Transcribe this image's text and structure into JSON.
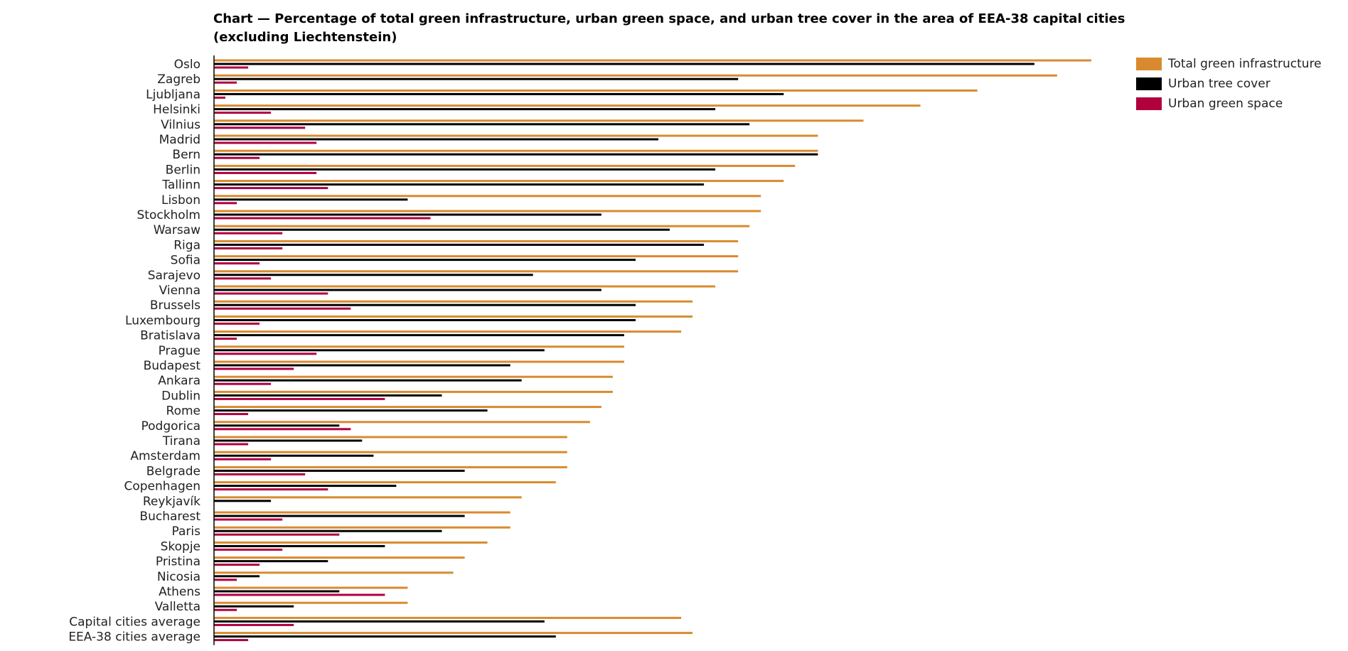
{
  "chart_data": {
    "type": "bar",
    "orientation": "horizontal",
    "title": "Chart — Percentage of total green infrastructure, urban green space, and urban tree cover in the area of EEA-38 capital cities (excluding Liechtenstein)",
    "categories": [
      "Oslo",
      "Zagreb",
      "Ljubljana",
      "Helsinki",
      "Vilnius",
      "Madrid",
      "Bern",
      "Berlin",
      "Tallinn",
      "Lisbon",
      "Stockholm",
      "Warsaw",
      "Riga",
      "Sofia",
      "Sarajevo",
      "Vienna",
      "Brussels",
      "Luxembourg",
      "Bratislava",
      "Prague",
      "Budapest",
      "Ankara",
      "Dublin",
      "Rome",
      "Podgorica",
      "Tirana",
      "Amsterdam",
      "Belgrade",
      "Copenhagen",
      "Reykjavík",
      "Bucharest",
      "Paris",
      "Skopje",
      "Pristina",
      "Nicosia",
      "Athens",
      "Valletta",
      "Capital cities average",
      "EEA-38 cities average"
    ],
    "series": [
      {
        "name": "Total green infrastructure",
        "color": "#d98a2e",
        "values": [
          77,
          74,
          67,
          62,
          57,
          53,
          53,
          51,
          50,
          48,
          48,
          47,
          46,
          46,
          46,
          44,
          42,
          42,
          41,
          36,
          36,
          35,
          35,
          34,
          33,
          31,
          31,
          31,
          30,
          27,
          26,
          26,
          24,
          22,
          21,
          17,
          17,
          41,
          42
        ]
      },
      {
        "name": "Urban tree cover",
        "color": "#000000",
        "values": [
          72,
          46,
          50,
          44,
          47,
          39,
          53,
          44,
          43,
          17,
          34,
          40,
          43,
          37,
          28,
          34,
          37,
          37,
          36,
          29,
          26,
          27,
          20,
          24,
          11,
          13,
          14,
          22,
          16,
          5,
          22,
          20,
          15,
          10,
          4,
          11,
          7,
          29,
          30
        ]
      },
      {
        "name": "Urban green space",
        "color": "#b0003e",
        "values": [
          3,
          2,
          1,
          5,
          8,
          9,
          4,
          9,
          10,
          2,
          19,
          6,
          6,
          4,
          5,
          10,
          12,
          4,
          2,
          9,
          7,
          5,
          15,
          3,
          12,
          3,
          5,
          8,
          10,
          0,
          6,
          11,
          6,
          4,
          2,
          15,
          2,
          7,
          3
        ]
      }
    ],
    "xlim": [
      0,
      77
    ],
    "grid": false,
    "legend_position": "top-right"
  },
  "legend": {
    "items": [
      {
        "label": "Total green infrastructure",
        "color": "#d98a2e"
      },
      {
        "label": "Urban tree cover",
        "color": "#000000"
      },
      {
        "label": "Urban green space",
        "color": "#b0003e"
      }
    ]
  }
}
